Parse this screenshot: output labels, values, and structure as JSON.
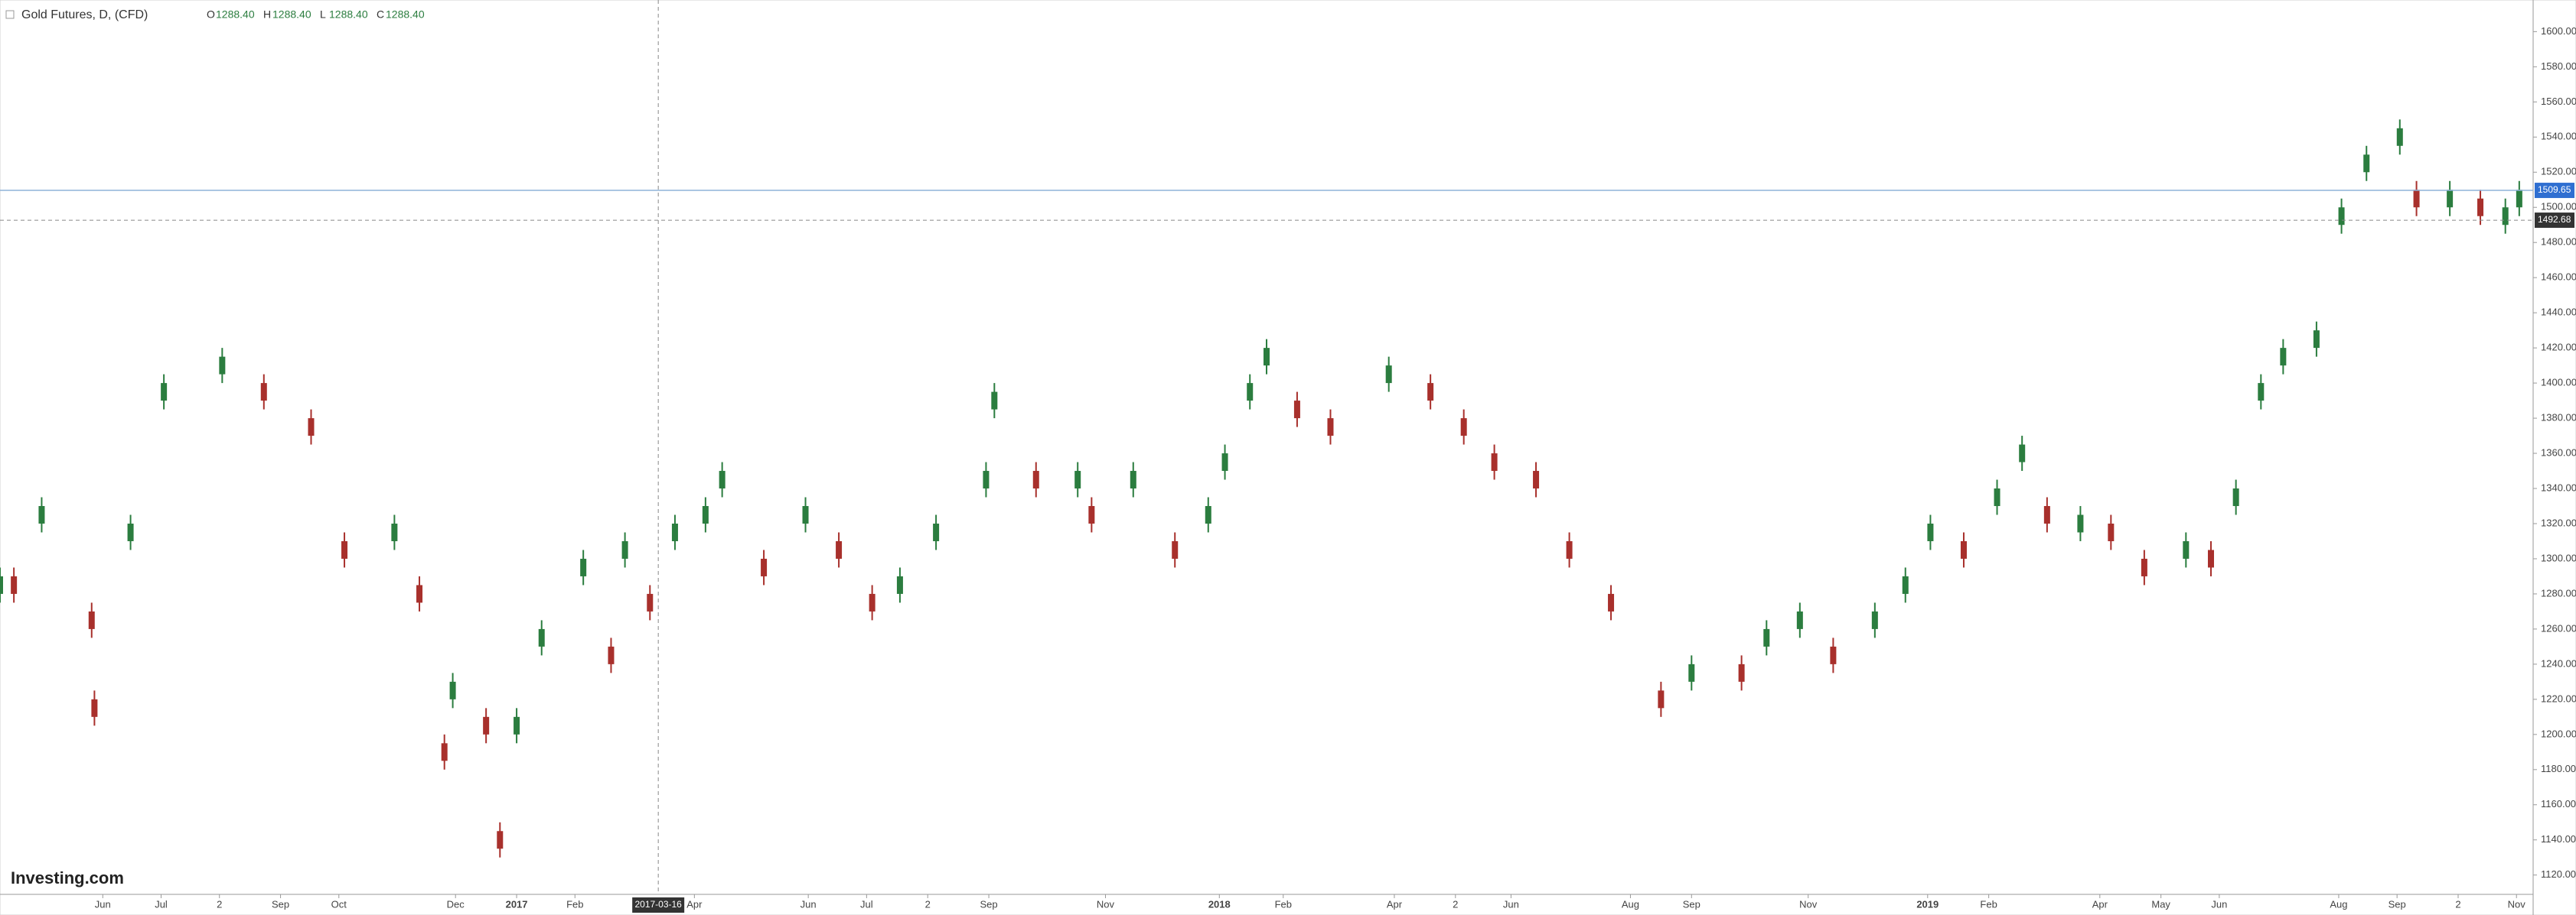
{
  "chart_data": {
    "type": "candlestick",
    "title": "Gold Futures, D, (CFD)",
    "ohlc_legend": [
      {
        "name": "O",
        "label": "1288.40"
      },
      {
        "name": "H",
        "label": "1288.40"
      },
      {
        "name": "L",
        "label": "1288.40"
      },
      {
        "name": "C",
        "label": "1288.40"
      }
    ],
    "x": [
      0,
      5,
      15,
      33,
      34,
      47,
      59,
      80,
      95,
      112,
      124,
      142,
      151,
      160,
      163,
      175,
      180,
      186,
      195,
      210,
      220,
      225,
      234,
      243,
      254,
      260,
      275,
      290,
      302,
      314,
      324,
      337,
      355,
      358,
      373,
      388,
      393,
      408,
      423,
      435,
      441,
      450,
      456,
      467,
      479,
      500,
      515,
      527,
      538,
      553,
      565,
      580,
      598,
      609,
      627,
      636,
      648,
      660,
      675,
      686,
      695,
      707,
      719,
      728,
      737,
      749,
      760,
      772,
      787,
      796,
      805,
      814,
      822,
      834,
      843,
      852,
      864,
      870,
      882,
      893,
      902,
      907
    ],
    "open": [
      1280,
      1290,
      1320,
      1270,
      1220,
      1310,
      1390,
      1405,
      1400,
      1380,
      1310,
      1310,
      1285,
      1195,
      1220,
      1210,
      1145,
      1200,
      1250,
      1290,
      1250,
      1300,
      1280,
      1310,
      1320,
      1340,
      1300,
      1320,
      1310,
      1280,
      1280,
      1310,
      1340,
      1385,
      1350,
      1340,
      1330,
      1340,
      1310,
      1320,
      1350,
      1390,
      1410,
      1390,
      1380,
      1400,
      1400,
      1380,
      1360,
      1350,
      1310,
      1280,
      1225,
      1230,
      1240,
      1250,
      1260,
      1250,
      1260,
      1280,
      1310,
      1310,
      1330,
      1355,
      1330,
      1315,
      1320,
      1300,
      1300,
      1305,
      1330,
      1390,
      1410,
      1420,
      1490,
      1520,
      1535,
      1510,
      1500,
      1505,
      1490,
      1500
    ],
    "high": [
      1295,
      1295,
      1335,
      1275,
      1225,
      1325,
      1405,
      1420,
      1405,
      1385,
      1315,
      1325,
      1290,
      1200,
      1235,
      1215,
      1150,
      1215,
      1265,
      1305,
      1255,
      1315,
      1285,
      1325,
      1335,
      1355,
      1305,
      1335,
      1315,
      1285,
      1295,
      1325,
      1355,
      1400,
      1355,
      1355,
      1335,
      1355,
      1315,
      1335,
      1365,
      1405,
      1425,
      1395,
      1385,
      1415,
      1405,
      1385,
      1365,
      1355,
      1315,
      1285,
      1230,
      1245,
      1245,
      1265,
      1275,
      1255,
      1275,
      1295,
      1325,
      1315,
      1345,
      1370,
      1335,
      1330,
      1325,
      1305,
      1315,
      1310,
      1345,
      1405,
      1425,
      1435,
      1505,
      1535,
      1550,
      1515,
      1515,
      1510,
      1505,
      1515
    ],
    "low": [
      1275,
      1275,
      1315,
      1255,
      1205,
      1305,
      1385,
      1400,
      1385,
      1365,
      1295,
      1305,
      1270,
      1180,
      1215,
      1195,
      1130,
      1195,
      1245,
      1285,
      1235,
      1295,
      1265,
      1305,
      1315,
      1335,
      1285,
      1315,
      1295,
      1265,
      1275,
      1305,
      1335,
      1380,
      1335,
      1335,
      1315,
      1335,
      1295,
      1315,
      1345,
      1385,
      1405,
      1375,
      1365,
      1395,
      1385,
      1365,
      1345,
      1335,
      1295,
      1265,
      1210,
      1225,
      1225,
      1245,
      1255,
      1235,
      1255,
      1275,
      1305,
      1295,
      1325,
      1350,
      1315,
      1310,
      1305,
      1285,
      1295,
      1290,
      1325,
      1385,
      1405,
      1415,
      1485,
      1515,
      1530,
      1495,
      1495,
      1490,
      1485,
      1495
    ],
    "close": [
      1290,
      1280,
      1330,
      1260,
      1210,
      1320,
      1400,
      1415,
      1390,
      1370,
      1300,
      1320,
      1275,
      1185,
      1230,
      1200,
      1135,
      1210,
      1260,
      1300,
      1240,
      1310,
      1270,
      1320,
      1330,
      1350,
      1290,
      1330,
      1300,
      1270,
      1290,
      1320,
      1350,
      1395,
      1340,
      1350,
      1320,
      1350,
      1300,
      1330,
      1360,
      1400,
      1420,
      1380,
      1370,
      1410,
      1390,
      1370,
      1350,
      1340,
      1300,
      1270,
      1215,
      1240,
      1230,
      1260,
      1270,
      1240,
      1270,
      1290,
      1320,
      1300,
      1340,
      1365,
      1320,
      1325,
      1310,
      1290,
      1310,
      1295,
      1340,
      1400,
      1420,
      1430,
      1500,
      1530,
      1545,
      1500,
      1510,
      1495,
      1500,
      1510
    ],
    "up_color": "#2b7d3f",
    "down_color": "#a8302c",
    "xlim": [
      0,
      912
    ],
    "ylim": [
      1109,
      1618
    ],
    "xticks": [
      {
        "value": 37,
        "label": "Jun"
      },
      {
        "value": 58,
        "label": "Jul"
      },
      {
        "value": 79,
        "label": "2"
      },
      {
        "value": 101,
        "label": "Sep"
      },
      {
        "value": 122,
        "label": "Oct"
      },
      {
        "value": 164,
        "label": "Dec"
      },
      {
        "value": 186,
        "label": "2017"
      },
      {
        "value": 207,
        "label": "Feb"
      },
      {
        "value": 250,
        "label": "Apr"
      },
      {
        "value": 291,
        "label": "Jun"
      },
      {
        "value": 312,
        "label": "Jul"
      },
      {
        "value": 334,
        "label": "2"
      },
      {
        "value": 356,
        "label": "Sep"
      },
      {
        "value": 398,
        "label": "Nov"
      },
      {
        "value": 439,
        "label": "2018"
      },
      {
        "value": 462,
        "label": "Feb"
      },
      {
        "value": 502,
        "label": "Apr"
      },
      {
        "value": 524,
        "label": "2"
      },
      {
        "value": 544,
        "label": "Jun"
      },
      {
        "value": 587,
        "label": "Aug"
      },
      {
        "value": 609,
        "label": "Sep"
      },
      {
        "value": 651,
        "label": "Nov"
      },
      {
        "value": 694,
        "label": "2019"
      },
      {
        "value": 716,
        "label": "Feb"
      },
      {
        "value": 756,
        "label": "Apr"
      },
      {
        "value": 778,
        "label": "May"
      },
      {
        "value": 799,
        "label": "Jun"
      },
      {
        "value": 842,
        "label": "Aug"
      },
      {
        "value": 863,
        "label": "Sep"
      },
      {
        "value": 885,
        "label": "2"
      },
      {
        "value": 906,
        "label": "Nov"
      }
    ],
    "yticks": [
      {
        "value": 1120,
        "label": "1120.00"
      },
      {
        "value": 1140,
        "label": "1140.00"
      },
      {
        "value": 1160,
        "label": "1160.00"
      },
      {
        "value": 1180,
        "label": "1180.00"
      },
      {
        "value": 1200,
        "label": "1200.00"
      },
      {
        "value": 1220,
        "label": "1220.00"
      },
      {
        "value": 1240,
        "label": "1240.00"
      },
      {
        "value": 1260,
        "label": "1260.00"
      },
      {
        "value": 1280,
        "label": "1280.00"
      },
      {
        "value": 1300,
        "label": "1300.00"
      },
      {
        "value": 1320,
        "label": "1320.00"
      },
      {
        "value": 1340,
        "label": "1340.00"
      },
      {
        "value": 1360,
        "label": "1360.00"
      },
      {
        "value": 1380,
        "label": "1380.00"
      },
      {
        "value": 1400,
        "label": "1400.00"
      },
      {
        "value": 1420,
        "label": "1420.00"
      },
      {
        "value": 1440,
        "label": "1440.00"
      },
      {
        "value": 1460,
        "label": "1460.00"
      },
      {
        "value": 1480,
        "label": "1480.00"
      },
      {
        "value": 1500,
        "label": "1500.00"
      },
      {
        "value": 1520,
        "label": "1520.00"
      },
      {
        "value": 1540,
        "label": "1540.00"
      },
      {
        "value": 1560,
        "label": "1560.00"
      },
      {
        "value": 1580,
        "label": "1580.00"
      },
      {
        "value": 1600,
        "label": "1600.00"
      }
    ],
    "last_price": 1509.65,
    "crosshair_price": 1492.68,
    "crosshair_x": {
      "value": 237,
      "label": "2017-03-16"
    },
    "logo": "Investing.com"
  }
}
